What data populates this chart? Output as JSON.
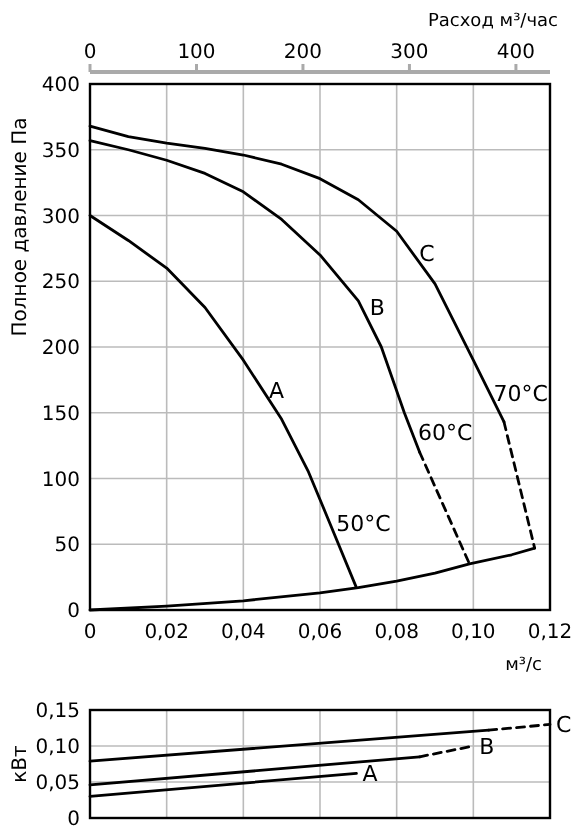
{
  "chart_data": [
    {
      "type": "line",
      "xlabel": "м³/с",
      "ylabel": "Полное давление Па",
      "x2label": "Расход м³/час",
      "xlim": [
        0,
        0.12
      ],
      "xticks": [
        {
          "value": 0,
          "label": "0"
        },
        {
          "value": 0.02,
          "label": "0,02"
        },
        {
          "value": 0.04,
          "label": "0,04"
        },
        {
          "value": 0.06,
          "label": "0,06"
        },
        {
          "value": 0.08,
          "label": "0,08"
        },
        {
          "value": 0.1,
          "label": "0,10"
        },
        {
          "value": 0.12,
          "label": "0,12"
        }
      ],
      "x2lim": [
        0,
        432
      ],
      "x2ticks": [
        0,
        100,
        200,
        300,
        400
      ],
      "ylim": [
        0,
        400
      ],
      "yticks": [
        0,
        50,
        100,
        150,
        200,
        250,
        300,
        350,
        400
      ],
      "grid": true,
      "line_style": "solid",
      "series": [
        {
          "color": "#000000",
          "x": [
            0,
            0.01,
            0.02,
            0.03,
            0.04,
            0.05,
            0.057,
            0.062,
            0.0695
          ],
          "values": [
            300,
            281,
            260,
            230,
            190,
            145,
            105,
            70,
            17
          ]
        },
        {
          "color": "#000000",
          "x": [
            0,
            0.01,
            0.02,
            0.03,
            0.04,
            0.05,
            0.06,
            0.07,
            0.076,
            0.082,
            0.086
          ],
          "values": [
            357,
            350,
            342,
            332,
            318,
            297,
            270,
            235,
            200,
            150,
            120
          ]
        },
        {
          "color": "#000000",
          "line_style": "dashed",
          "x": [
            0.086,
            0.099
          ],
          "values": [
            120,
            35
          ]
        },
        {
          "color": "#000000",
          "x": [
            0,
            0.01,
            0.02,
            0.03,
            0.04,
            0.05,
            0.06,
            0.07,
            0.08,
            0.09,
            0.1,
            0.108
          ],
          "values": [
            368,
            360,
            355,
            351,
            346,
            339,
            328,
            312,
            288,
            248,
            190,
            143
          ]
        },
        {
          "color": "#000000",
          "line_style": "dashed",
          "x": [
            0.108,
            0.116
          ],
          "values": [
            143,
            47
          ]
        },
        {
          "color": "#000000",
          "x": [
            0,
            0.02,
            0.04,
            0.06,
            0.07,
            0.08,
            0.09,
            0.099,
            0.11,
            0.116
          ],
          "values": [
            0,
            3,
            7,
            13,
            17,
            22,
            28,
            35,
            42,
            47
          ]
        }
      ],
      "annotations": [
        {
          "text": "A",
          "x": 0.0451,
          "y": 167
        },
        {
          "text": "B",
          "x": 0.0714,
          "y": 230
        },
        {
          "text": "C",
          "x": 0.0843,
          "y": 271
        },
        {
          "text": "50°C",
          "x": 0.0627,
          "y": 66
        },
        {
          "text": "60°C",
          "x": 0.084,
          "y": 135
        },
        {
          "text": "70°C",
          "x": 0.1037,
          "y": 165
        }
      ]
    },
    {
      "type": "line",
      "ylabel": "кВт",
      "xlim": [
        0,
        0.12
      ],
      "xticks": [
        0,
        0.02,
        0.04,
        0.06,
        0.08,
        0.1,
        0.12
      ],
      "ylim": [
        0,
        0.15
      ],
      "yticks": [
        {
          "value": 0,
          "label": "0"
        },
        {
          "value": 0.05,
          "label": "0,05"
        },
        {
          "value": 0.1,
          "label": "0,10"
        },
        {
          "value": 0.15,
          "label": "0,15"
        }
      ],
      "tick_labels": "y",
      "grid": true,
      "line_style": "solid",
      "series": [
        {
          "color": "#000000",
          "x": [
            0,
            0.0695
          ],
          "values": [
            0.03,
            0.062
          ]
        },
        {
          "color": "#000000",
          "x": [
            0,
            0.086
          ],
          "values": [
            0.046,
            0.085
          ]
        },
        {
          "color": "#000000",
          "line_style": "dashed",
          "x": [
            0.086,
            0.1
          ],
          "values": [
            0.085,
            0.1
          ]
        },
        {
          "color": "#000000",
          "x": [
            0,
            0.104
          ],
          "values": [
            0.079,
            0.122
          ]
        },
        {
          "color": "#000000",
          "line_style": "dashed",
          "x": [
            0.104,
            0.12
          ],
          "values": [
            0.122,
            0.13
          ]
        }
      ],
      "annotations": [
        {
          "text": "C",
          "x": 0.12,
          "y": 0.13
        },
        {
          "text": "B",
          "x": 0.1,
          "y": 0.1
        },
        {
          "text": "A",
          "x": 0.0695,
          "y": 0.062
        }
      ]
    }
  ]
}
